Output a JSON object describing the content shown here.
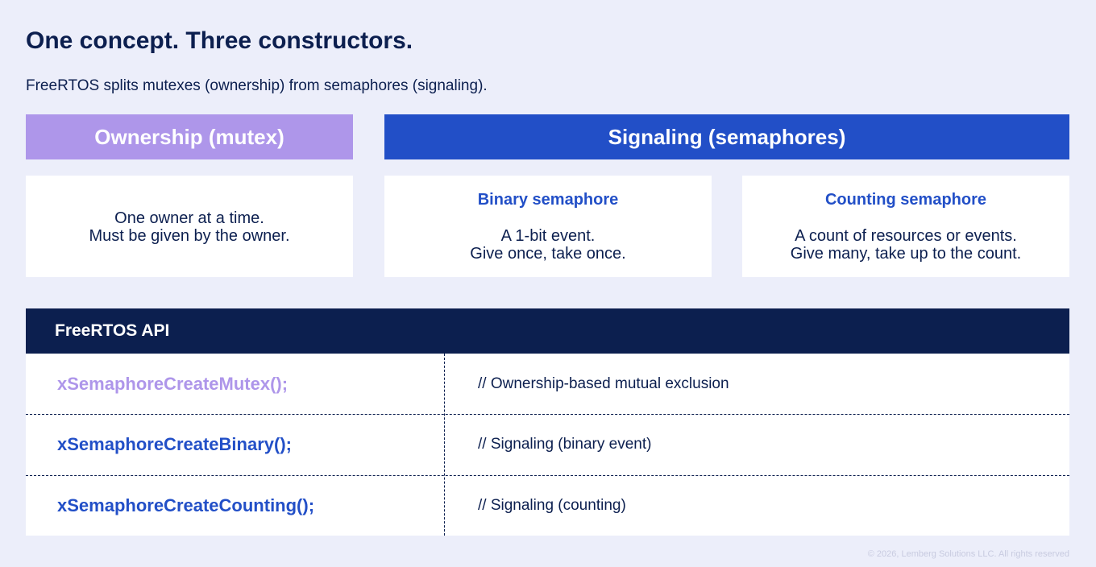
{
  "title": "One concept. Three constructors.",
  "subtitle": "FreeRTOS splits mutexes (ownership) from semaphores (signaling).",
  "groups": {
    "ownership": "Ownership (mutex)",
    "signaling": "Signaling (semaphores)"
  },
  "cards": {
    "mutex": {
      "lines": [
        "One owner at a time.",
        "Must be given by the owner."
      ]
    },
    "binary": {
      "title": "Binary semaphore",
      "lines": [
        "A 1-bit event.",
        "Give once, take once."
      ]
    },
    "counting": {
      "title": "Counting semaphore",
      "lines": [
        "A count of resources or events.",
        "Give many, take up to the count."
      ]
    }
  },
  "api": {
    "header": "FreeRTOS API",
    "rows": [
      {
        "fn": "xSemaphoreCreateMutex();",
        "comment": "// Ownership-based mutual exclusion"
      },
      {
        "fn": "xSemaphoreCreateBinary();",
        "comment": "// Signaling (binary event)"
      },
      {
        "fn": "xSemaphoreCreateCounting();",
        "comment": "// Signaling (counting)"
      }
    ]
  },
  "colors": {
    "mutex": "#ae96ea",
    "signaling": "#224fc7",
    "navy": "#0c1f4f",
    "background": "#eceefa"
  },
  "footer": "© 2026, Lemberg Solutions LLC. All rights reserved"
}
